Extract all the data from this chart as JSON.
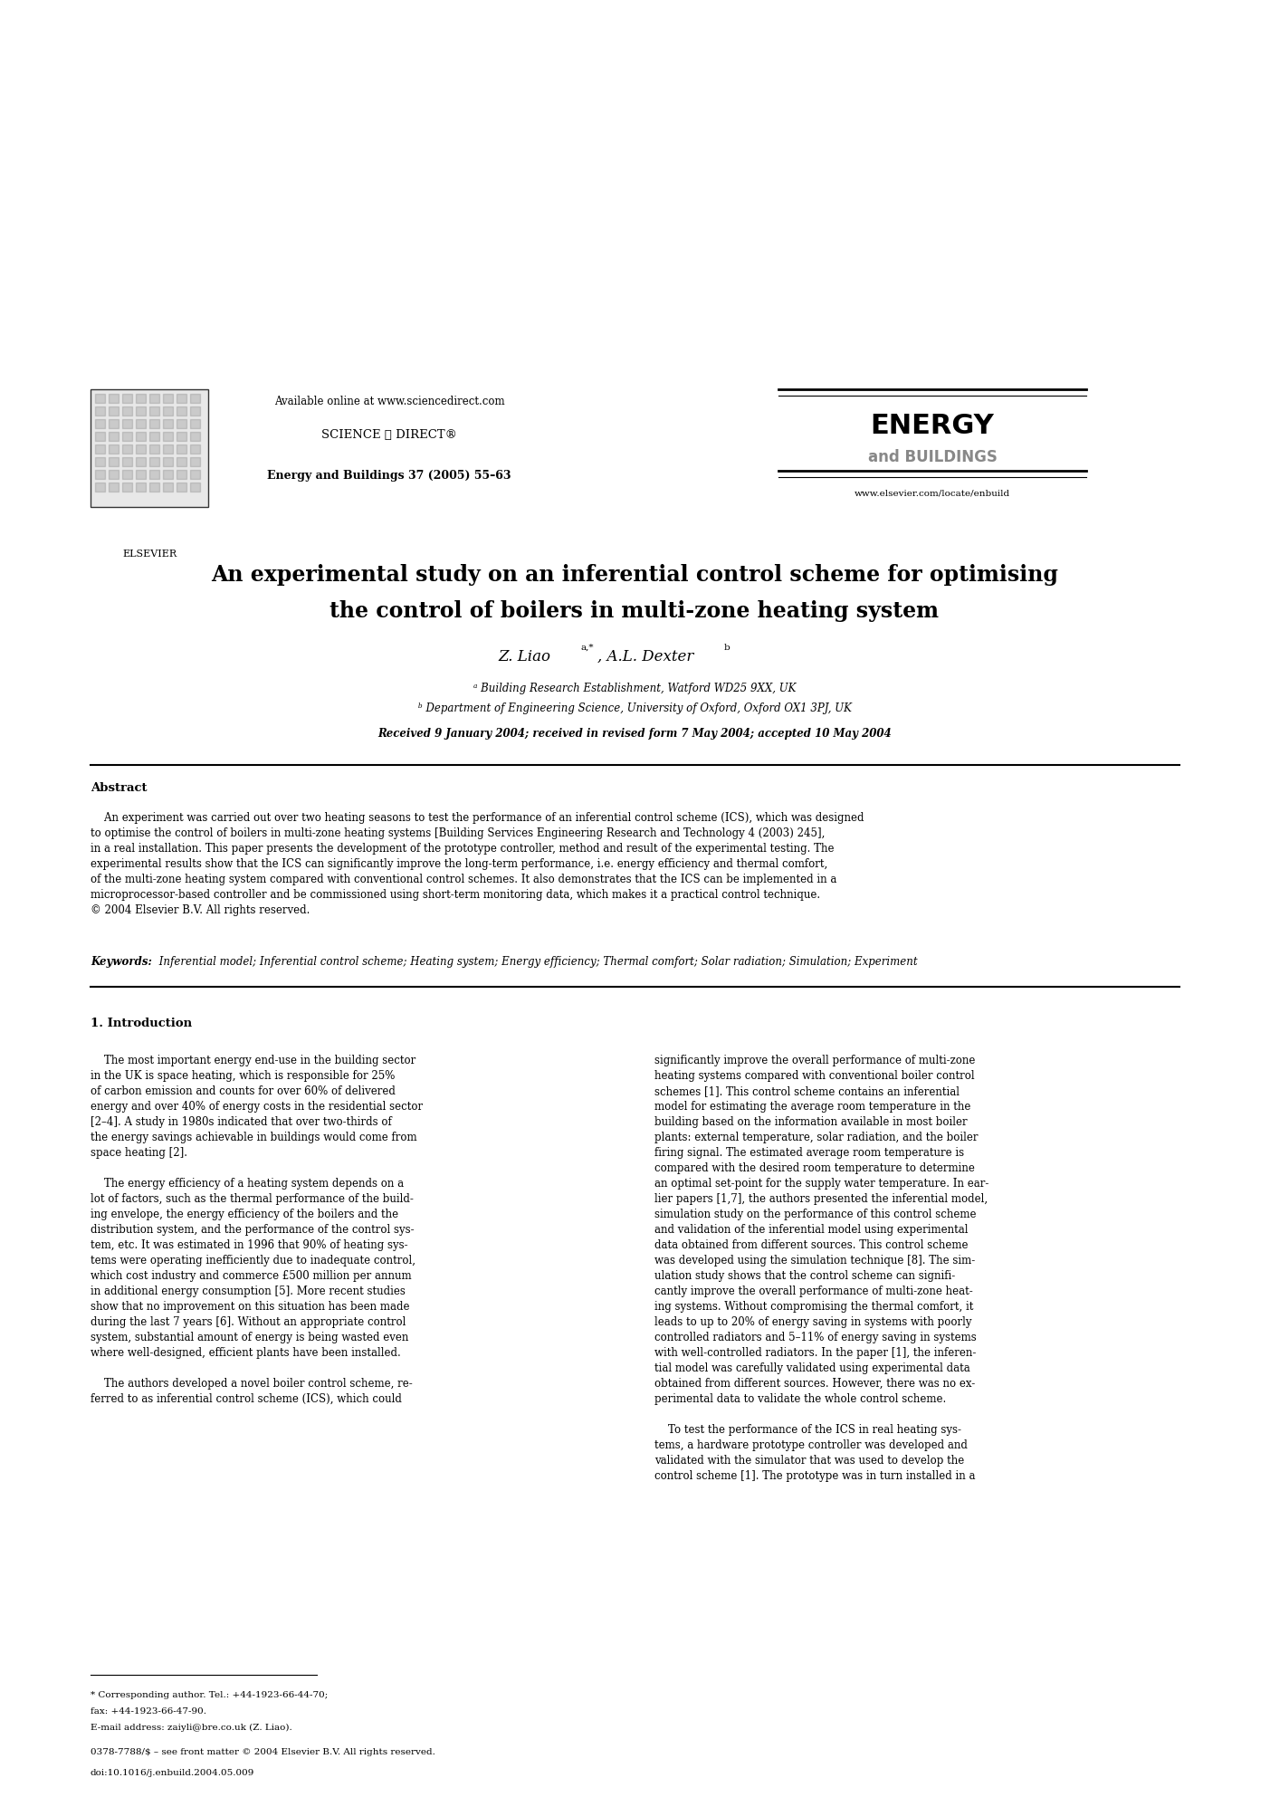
{
  "bg_color": "#ffffff",
  "page_width": 14.03,
  "page_height": 19.85,
  "header": {
    "available_online": "Available online at www.sciencedirect.com",
    "science_direct": "SCIENCE ⓐ DIRECT®",
    "journal_name_energy": "ENERGY",
    "journal_name_buildings": "and BUILDINGS",
    "journal_ref": "Energy and Buildings 37 (2005) 55–63",
    "journal_url": "www.elsevier.com/locate/enbuild",
    "elsevier_label": "ELSEVIER"
  },
  "title_line1": "An experimental study on an inferential control scheme for optimising",
  "title_line2": "the control of boilers in multi-zone heating system",
  "author_main": "Z. Liao",
  "author_sup1": "a,*",
  "author_comma": ", A.L. Dexter",
  "author_sup2": "b",
  "affil_a": "ᵃ Building Research Establishment, Watford WD25 9XX, UK",
  "affil_b": "ᵇ Department of Engineering Science, University of Oxford, Oxford OX1 3PJ, UK",
  "received": "Received 9 January 2004; received in revised form 7 May 2004; accepted 10 May 2004",
  "abstract_heading": "Abstract",
  "abstract_indent": "    An experiment was carried out over two heating seasons to test the performance of an inferential control scheme (ICS), which was designed\nto optimise the control of boilers in multi-zone heating systems [Building Services Engineering Research and Technology 4 (2003) 245],\nin a real installation. This paper presents the development of the prototype controller, method and result of the experimental testing. The\nexperimental results show that the ICS can significantly improve the long-term performance, i.e. energy efficiency and thermal comfort,\nof the multi-zone heating system compared with conventional control schemes. It also demonstrates that the ICS can be implemented in a\nmicroprocessor-based controller and be commissioned using short-term monitoring data, which makes it a practical control technique.\n© 2004 Elsevier B.V. All rights reserved.",
  "keywords_label": "Keywords:",
  "keywords_text": " Inferential model; Inferential control scheme; Heating system; Energy efficiency; Thermal comfort; Solar radiation; Simulation; Experiment",
  "section1_heading": "1. Introduction",
  "col_left_para1": "    The most important energy end-use in the building sector\nin the UK is space heating, which is responsible for 25%\nof carbon emission and counts for over 60% of delivered\nenergy and over 40% of energy costs in the residential sector\n[2–4]. A study in 1980s indicated that over two-thirds of\nthe energy savings achievable in buildings would come from\nspace heating [2].",
  "col_left_para2": "    The energy efficiency of a heating system depends on a\nlot of factors, such as the thermal performance of the build-\ning envelope, the energy efficiency of the boilers and the\ndistribution system, and the performance of the control sys-\ntem, etc. It was estimated in 1996 that 90% of heating sys-\ntems were operating inefficiently due to inadequate control,\nwhich cost industry and commerce £500 million per annum\nin additional energy consumption [5]. More recent studies\nshow that no improvement on this situation has been made\nduring the last 7 years [6]. Without an appropriate control\nsystem, substantial amount of energy is being wasted even\nwhere well-designed, efficient plants have been installed.",
  "col_left_para3": "    The authors developed a novel boiler control scheme, re-\nferred to as inferential control scheme (ICS), which could",
  "col_right_para1": "significantly improve the overall performance of multi-zone\nheating systems compared with conventional boiler control\nschemes [1]. This control scheme contains an inferential\nmodel for estimating the average room temperature in the\nbuilding based on the information available in most boiler\nplants: external temperature, solar radiation, and the boiler\nfiring signal. The estimated average room temperature is\ncompared with the desired room temperature to determine\nan optimal set-point for the supply water temperature. In ear-\nlier papers [1,7], the authors presented the inferential model,\nsimulation study on the performance of this control scheme\nand validation of the inferential model using experimental\ndata obtained from different sources. This control scheme\nwas developed using the simulation technique [8]. The sim-\nulation study shows that the control scheme can signifi-\ncantly improve the overall performance of multi-zone heat-\ning systems. Without compromising the thermal comfort, it\nleads to up to 20% of energy saving in systems with poorly\ncontrolled radiators and 5–11% of energy saving in systems\nwith well-controlled radiators. In the paper [1], the inferen-\ntial model was carefully validated using experimental data\nobtained from different sources. However, there was no ex-\nperimental data to validate the whole control scheme.",
  "col_right_para2": "    To test the performance of the ICS in real heating sys-\ntems, a hardware prototype controller was developed and\nvalidated with the simulator that was used to develop the\ncontrol scheme [1]. The prototype was in turn installed in a",
  "footnote_line1": "* Corresponding author. Tel.: +44-1923-66-44-70;",
  "footnote_line2": "fax: +44-1923-66-47-90.",
  "footnote_line3": "E-mail address: zaiyli@bre.co.uk (Z. Liao).",
  "bottom_line1": "0378-7788/$ – see front matter © 2004 Elsevier B.V. All rights reserved.",
  "bottom_line2": "doi:10.1016/j.enbuild.2004.05.009"
}
